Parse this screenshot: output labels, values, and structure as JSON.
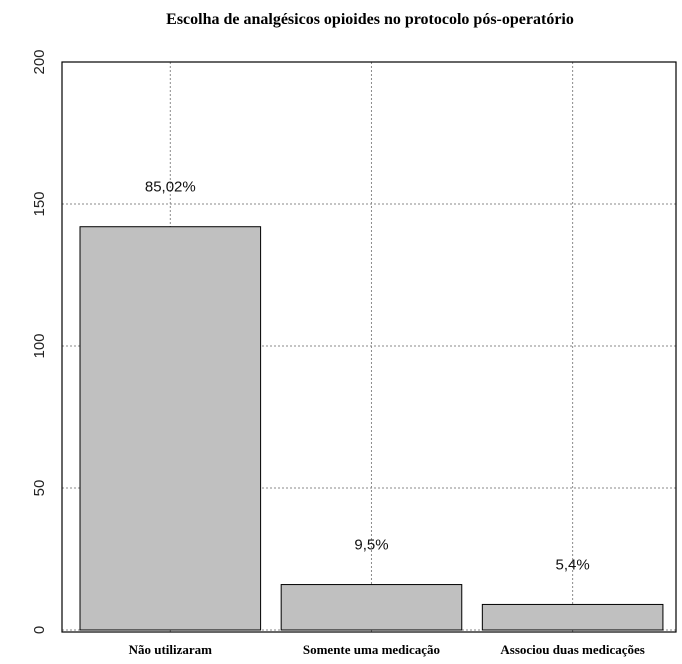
{
  "chart_data": {
    "type": "bar",
    "title": "Escolha de analgésicos opioides no protocolo pós-operatório",
    "xlabel": "",
    "ylabel": "",
    "categories": [
      "Não utilizaram",
      "Somente uma medicação",
      "Associou duas medicações"
    ],
    "values": [
      142,
      16,
      9
    ],
    "data_labels": [
      "85,02%",
      "9,5%",
      "5,4%"
    ],
    "ylim": [
      0,
      200
    ],
    "yticks": [
      0,
      50,
      100,
      150,
      200
    ],
    "grid": true,
    "bar_color": "#c0c0c0"
  }
}
